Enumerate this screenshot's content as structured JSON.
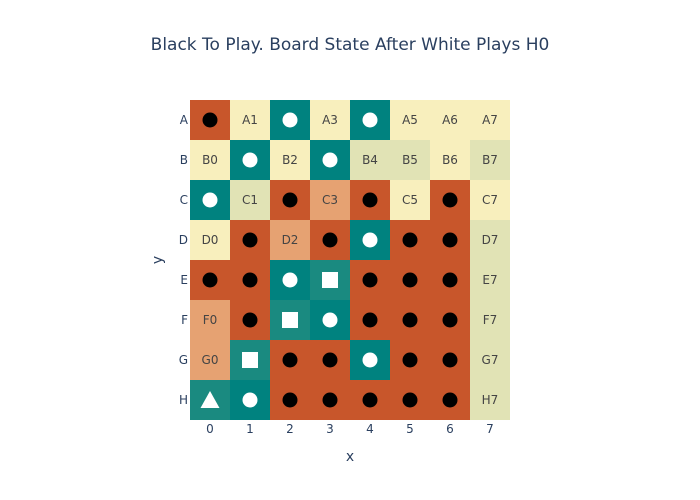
{
  "chart_data": {
    "type": "heatmap",
    "title": "Black To Play. Board State After White Plays H0",
    "xlabel": "x",
    "ylabel": "y",
    "x_ticks": [
      "0",
      "1",
      "2",
      "3",
      "4",
      "5",
      "6",
      "7"
    ],
    "y_ticks": [
      "A",
      "B",
      "C",
      "D",
      "E",
      "F",
      "G",
      "H"
    ],
    "colors": {
      "black_owned": "#c8562b",
      "black_light": "#e6a272",
      "white_owned": "#00827f",
      "white_light": "#1a8a80",
      "empty": "#f8efbd",
      "empty_alt": "#e1e3b5",
      "black_stone": "#000000",
      "white_stone": "#ffffff"
    },
    "rows": [
      [
        {
          "fill": "black_owned",
          "marker": "black-circle"
        },
        {
          "fill": "empty",
          "label": "A1"
        },
        {
          "fill": "white_owned",
          "marker": "white-circle"
        },
        {
          "fill": "empty",
          "label": "A3"
        },
        {
          "fill": "white_owned",
          "marker": "white-circle"
        },
        {
          "fill": "empty",
          "label": "A5"
        },
        {
          "fill": "empty",
          "label": "A6"
        },
        {
          "fill": "empty",
          "label": "A7"
        }
      ],
      [
        {
          "fill": "empty",
          "label": "B0"
        },
        {
          "fill": "white_owned",
          "marker": "white-circle"
        },
        {
          "fill": "empty",
          "label": "B2"
        },
        {
          "fill": "white_owned",
          "marker": "white-circle"
        },
        {
          "fill": "empty_alt",
          "label": "B4"
        },
        {
          "fill": "empty_alt",
          "label": "B5"
        },
        {
          "fill": "empty",
          "label": "B6"
        },
        {
          "fill": "empty_alt",
          "label": "B7"
        }
      ],
      [
        {
          "fill": "white_owned",
          "marker": "white-circle"
        },
        {
          "fill": "empty_alt",
          "label": "C1"
        },
        {
          "fill": "black_owned",
          "marker": "black-circle"
        },
        {
          "fill": "black_light",
          "label": "C3"
        },
        {
          "fill": "black_owned",
          "marker": "black-circle"
        },
        {
          "fill": "empty",
          "label": "C5"
        },
        {
          "fill": "black_owned",
          "marker": "black-circle"
        },
        {
          "fill": "empty",
          "label": "C7"
        }
      ],
      [
        {
          "fill": "empty",
          "label": "D0"
        },
        {
          "fill": "black_owned",
          "marker": "black-circle"
        },
        {
          "fill": "black_light",
          "label": "D2"
        },
        {
          "fill": "black_owned",
          "marker": "black-circle"
        },
        {
          "fill": "white_owned",
          "marker": "white-circle"
        },
        {
          "fill": "black_owned",
          "marker": "black-circle"
        },
        {
          "fill": "black_owned",
          "marker": "black-circle"
        },
        {
          "fill": "empty_alt",
          "label": "D7"
        }
      ],
      [
        {
          "fill": "black_owned",
          "marker": "black-circle"
        },
        {
          "fill": "black_owned",
          "marker": "black-circle"
        },
        {
          "fill": "white_owned",
          "marker": "white-circle"
        },
        {
          "fill": "white_light",
          "marker": "white-square"
        },
        {
          "fill": "black_owned",
          "marker": "black-circle"
        },
        {
          "fill": "black_owned",
          "marker": "black-circle"
        },
        {
          "fill": "black_owned",
          "marker": "black-circle"
        },
        {
          "fill": "empty_alt",
          "label": "E7"
        }
      ],
      [
        {
          "fill": "black_light",
          "label": "F0"
        },
        {
          "fill": "black_owned",
          "marker": "black-circle"
        },
        {
          "fill": "white_light",
          "marker": "white-square"
        },
        {
          "fill": "white_owned",
          "marker": "white-circle"
        },
        {
          "fill": "black_owned",
          "marker": "black-circle"
        },
        {
          "fill": "black_owned",
          "marker": "black-circle"
        },
        {
          "fill": "black_owned",
          "marker": "black-circle"
        },
        {
          "fill": "empty_alt",
          "label": "F7"
        }
      ],
      [
        {
          "fill": "black_light",
          "label": "G0"
        },
        {
          "fill": "white_light",
          "marker": "white-square"
        },
        {
          "fill": "black_owned",
          "marker": "black-circle"
        },
        {
          "fill": "black_owned",
          "marker": "black-circle"
        },
        {
          "fill": "white_owned",
          "marker": "white-circle"
        },
        {
          "fill": "black_owned",
          "marker": "black-circle"
        },
        {
          "fill": "black_owned",
          "marker": "black-circle"
        },
        {
          "fill": "empty_alt",
          "label": "G7"
        }
      ],
      [
        {
          "fill": "white_light",
          "marker": "white-triangle"
        },
        {
          "fill": "white_owned",
          "marker": "white-circle"
        },
        {
          "fill": "black_owned",
          "marker": "black-circle"
        },
        {
          "fill": "black_owned",
          "marker": "black-circle"
        },
        {
          "fill": "black_owned",
          "marker": "black-circle"
        },
        {
          "fill": "black_owned",
          "marker": "black-circle"
        },
        {
          "fill": "black_owned",
          "marker": "black-circle"
        },
        {
          "fill": "empty_alt",
          "label": "H7"
        }
      ]
    ]
  }
}
